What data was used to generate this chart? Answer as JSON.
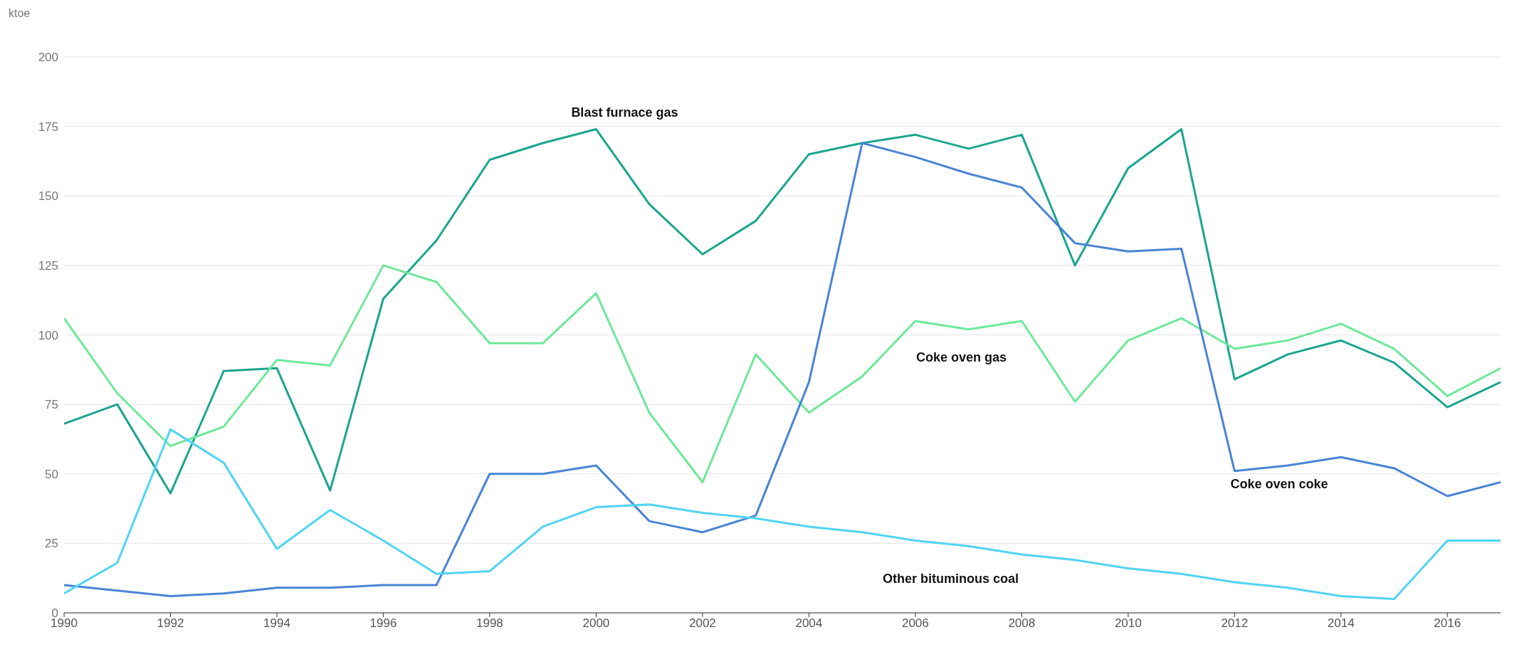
{
  "chart_data": {
    "type": "line",
    "ylabel": "ktoe",
    "x": [
      1990,
      1991,
      1992,
      1993,
      1994,
      1995,
      1996,
      1997,
      1998,
      1999,
      2000,
      2001,
      2002,
      2003,
      2004,
      2005,
      2006,
      2007,
      2008,
      2009,
      2010,
      2011,
      2012,
      2013,
      2014,
      2015,
      2016,
      2017
    ],
    "series": [
      {
        "name": "Blast furnace gas",
        "color": "#1aa58f",
        "values": [
          68,
          75,
          43,
          87,
          88,
          44,
          113,
          134,
          163,
          169,
          174,
          147,
          129,
          141,
          165,
          169,
          172,
          167,
          172,
          125,
          160,
          174,
          84,
          93,
          98,
          90,
          74,
          83
        ]
      },
      {
        "name": "Coke oven gas",
        "color": "#6ee89a",
        "values": [
          106,
          79,
          60,
          67,
          91,
          89,
          125,
          119,
          97,
          97,
          115,
          72,
          47,
          93,
          72,
          85,
          105,
          102,
          105,
          76,
          98,
          106,
          95,
          98,
          104,
          95,
          78,
          88
        ]
      },
      {
        "name": "Coke oven coke",
        "color": "#4a84d4",
        "values": [
          10,
          8,
          6,
          7,
          9,
          9,
          10,
          10,
          50,
          50,
          53,
          33,
          29,
          35,
          83,
          169,
          164,
          158,
          153,
          133,
          130,
          131,
          51,
          53,
          56,
          52,
          42,
          47
        ]
      },
      {
        "name": "Other bituminous coal",
        "color": "#50d4f2",
        "values": [
          7,
          18,
          66,
          54,
          23,
          37,
          26,
          14,
          15,
          31,
          38,
          39,
          36,
          34,
          31,
          29,
          26,
          24,
          21,
          19,
          16,
          14,
          11,
          9,
          6,
          5,
          26,
          26
        ]
      }
    ],
    "xlim": [
      1990,
      2017
    ],
    "xticks": [
      1990,
      1992,
      1994,
      1996,
      1998,
      2000,
      2002,
      2004,
      2006,
      2008,
      2010,
      2012,
      2014,
      2016
    ],
    "ylim": [
      0,
      200
    ],
    "yticks": [
      0,
      25,
      50,
      75,
      100,
      125,
      150,
      175,
      200
    ],
    "grid": "y",
    "legend": false,
    "marker": "none",
    "line_style": "solid"
  }
}
